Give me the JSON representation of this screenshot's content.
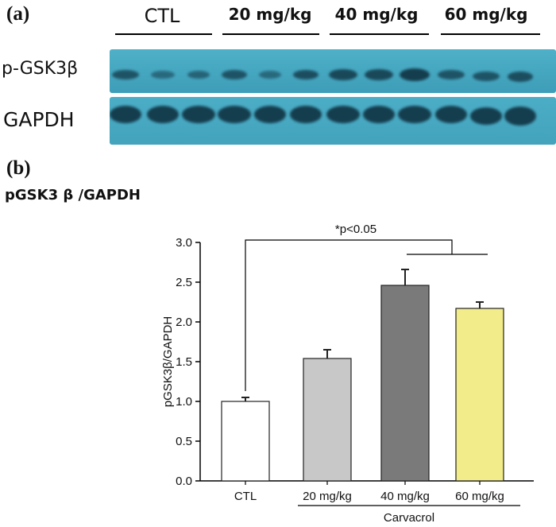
{
  "panel_a": {
    "label": "(a)",
    "groups": [
      "CTL",
      "20 mg/kg",
      "40 mg/kg",
      "60 mg/kg"
    ],
    "rows": [
      "p-GSK3β",
      "GAPDH"
    ]
  },
  "panel_b": {
    "label": "(b)",
    "title": "pGSK3 β /GAPDH"
  },
  "colors": {
    "blot": "#46a7c0",
    "band": "#123848",
    "bar_ctl": "#ffffff",
    "bar_20": "#c8c8c8",
    "bar_40": "#7a7a7a",
    "bar_60": "#f2ec8a"
  },
  "chart_data": {
    "type": "bar",
    "categories": [
      "CTL",
      "20 mg/kg",
      "40 mg/kg",
      "60 mg/kg"
    ],
    "values": [
      1.0,
      1.54,
      2.46,
      2.17
    ],
    "errors": [
      0.05,
      0.11,
      0.2,
      0.08
    ],
    "ylabel": "pGSK3β/GAPDH",
    "xlabel": "",
    "group_label": "Carvacrol",
    "ylim": [
      0,
      3.0
    ],
    "yticks": [
      "0.0",
      "0.5",
      "1.0",
      "1.5",
      "2.0",
      "2.5",
      "3.0"
    ],
    "annotation": "*p<0.05",
    "grid": false
  }
}
